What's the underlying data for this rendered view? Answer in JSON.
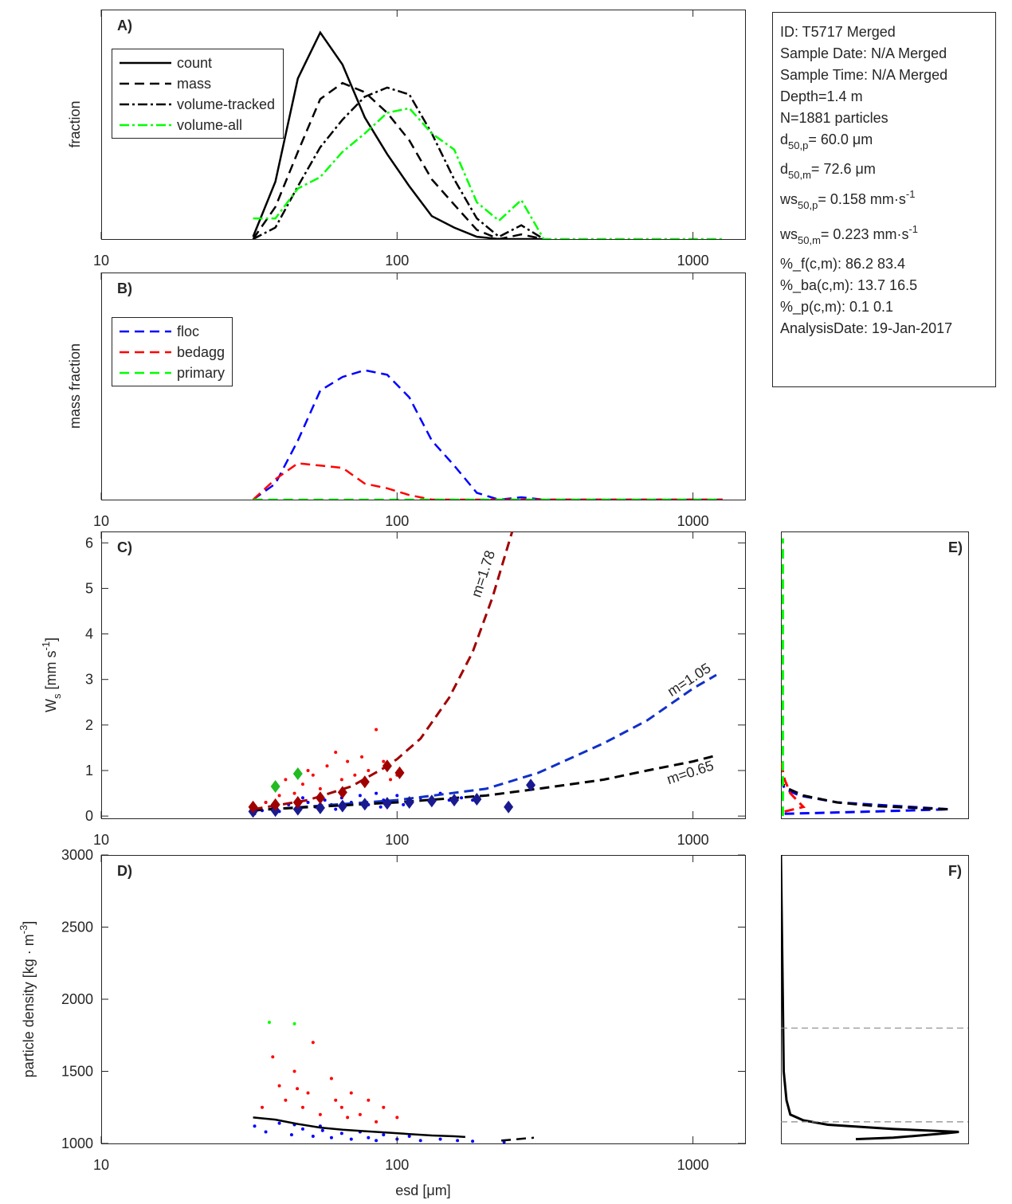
{
  "chart_data": [
    {
      "type": "line",
      "label": "A)",
      "ylabel": "fraction",
      "xscale": "log",
      "xlim": [
        10,
        1500
      ],
      "xticks": [
        10,
        100,
        1000
      ],
      "ylim": [
        0,
        1
      ],
      "legend": "upper-left",
      "x": [
        32.6,
        38.8,
        46.2,
        55,
        65.4,
        77.8,
        92.6,
        110,
        131,
        156,
        186,
        221,
        263,
        313,
        373,
        443,
        528,
        628,
        747,
        889,
        1058,
        1259
      ],
      "series": [
        {
          "name": "count",
          "color": "#000000",
          "dash": "solid",
          "values": [
            0.01,
            0.25,
            0.7,
            0.9,
            0.76,
            0.53,
            0.37,
            0.23,
            0.1,
            0.05,
            0.01,
            0,
            0,
            0,
            null,
            null,
            null,
            null,
            null,
            null,
            null,
            null
          ]
        },
        {
          "name": "mass",
          "color": "#000000",
          "dash": "dashed",
          "values": [
            0,
            0.14,
            0.38,
            0.61,
            0.68,
            0.64,
            0.55,
            0.43,
            0.26,
            0.15,
            0.04,
            0,
            0.02,
            0,
            null,
            null,
            null,
            null,
            null,
            null,
            null,
            null
          ]
        },
        {
          "name": "volume-tracked",
          "color": "#000000",
          "dash": "dashdot",
          "values": [
            0,
            0.05,
            0.23,
            0.4,
            0.52,
            0.62,
            0.66,
            0.63,
            0.46,
            0.26,
            0.09,
            0.01,
            0.06,
            0,
            null,
            null,
            null,
            null,
            null,
            null,
            null,
            null
          ]
        },
        {
          "name": "volume-all",
          "color": "#00ff00",
          "dash": "dashdot",
          "values": [
            0.09,
            0.09,
            0.22,
            0.27,
            0.38,
            0.46,
            0.55,
            0.57,
            0.46,
            0.39,
            0.16,
            0.08,
            0.17,
            0,
            0,
            0,
            0,
            0,
            0,
            0,
            0,
            0
          ]
        }
      ]
    },
    {
      "type": "line",
      "label": "B)",
      "ylabel": "mass fraction",
      "xscale": "log",
      "xlim": [
        10,
        1500
      ],
      "xticks": [
        10,
        100,
        1000
      ],
      "ylim": [
        0,
        1
      ],
      "legend": "upper-left",
      "x": [
        32.6,
        38.8,
        46.2,
        55,
        65.4,
        77.8,
        92.6,
        110,
        131,
        156,
        186,
        221,
        263,
        313,
        373,
        443,
        528,
        628,
        747,
        889,
        1058,
        1259
      ],
      "series": [
        {
          "name": "floc",
          "color": "#0000ff",
          "dash": "dashed",
          "values": [
            0,
            0.07,
            0.26,
            0.48,
            0.54,
            0.57,
            0.55,
            0.45,
            0.26,
            0.15,
            0.03,
            0,
            0.01,
            0,
            0,
            0,
            0,
            0,
            0,
            0,
            0,
            0
          ]
        },
        {
          "name": "bedagg",
          "color": "#ff0000",
          "dash": "dashed",
          "values": [
            0,
            0.09,
            0.16,
            0.15,
            0.14,
            0.07,
            0.05,
            0.02,
            0,
            0,
            0,
            0,
            0,
            0,
            0,
            0,
            0,
            0,
            0,
            0,
            0,
            0
          ]
        },
        {
          "name": "primary",
          "color": "#00ff00",
          "dash": "dashed",
          "values": [
            0,
            0,
            0,
            0,
            0,
            0,
            0,
            0,
            0,
            0,
            0,
            0,
            0,
            0,
            0,
            0,
            0,
            0,
            0,
            0,
            0,
            0
          ]
        }
      ]
    },
    {
      "type": "scatter",
      "label": "C)",
      "ylabel": [
        {
          "text": "W"
        },
        {
          "text": "s",
          "shift": "sub"
        },
        {
          "text": " [mm s"
        },
        {
          "text": "-1",
          "shift": "super"
        },
        {
          "text": "]"
        }
      ],
      "xscale": "log",
      "xlim": [
        10,
        1500
      ],
      "xticks": [
        10,
        100,
        1000
      ],
      "ylim": [
        -0.05,
        6.25
      ],
      "yticks": [
        0,
        1,
        2,
        3,
        4,
        5,
        6
      ],
      "annotations": [
        {
          "text": "m=1.78",
          "color": "#a00000"
        },
        {
          "text": "m=1.05",
          "color": "#1030c8"
        },
        {
          "text": "m=0.65",
          "color": "#000000"
        }
      ],
      "series": [
        {
          "color": "#0000ff",
          "marker": "dot",
          "x": [
            33,
            35,
            38,
            40,
            43,
            46,
            50,
            53,
            57,
            60,
            65,
            70,
            75,
            80,
            85,
            90,
            95,
            100,
            110,
            120,
            130,
            140,
            150,
            165,
            180,
            36,
            48,
            62,
            88,
            105
          ],
          "values": [
            0.05,
            0.12,
            0.2,
            0.1,
            0.25,
            0.15,
            0.3,
            0.2,
            0.35,
            0.25,
            0.4,
            0.3,
            0.45,
            0.25,
            0.5,
            0.35,
            0.3,
            0.45,
            0.35,
            0.4,
            0.3,
            0.5,
            0.35,
            0.4,
            0.35,
            0.3,
            0.4,
            0.15,
            0.2,
            0.25
          ]
        },
        {
          "color": "#ff0000",
          "marker": "dot",
          "x": [
            33,
            36,
            40,
            42,
            45,
            48,
            52,
            55,
            58,
            62,
            65,
            68,
            72,
            76,
            80,
            85,
            90,
            95,
            100,
            50
          ],
          "values": [
            0.2,
            0.3,
            0.45,
            0.8,
            0.5,
            0.7,
            0.9,
            0.6,
            1.1,
            1.4,
            0.8,
            1.2,
            0.9,
            1.3,
            1.0,
            1.9,
            1.2,
            0.8,
            0.9,
            1.0
          ]
        },
        {
          "color": "#1030c8",
          "dash": "dashed",
          "x": [
            32.6,
            100,
            200,
            300,
            500,
            700,
            1000,
            1200
          ],
          "values": [
            0.12,
            0.35,
            0.6,
            0.95,
            1.6,
            2.1,
            2.8,
            3.1
          ]
        },
        {
          "color": "#000000",
          "dash": "dashed",
          "x": [
            32.6,
            100,
            200,
            300,
            500,
            700,
            1000,
            1200
          ],
          "values": [
            0.13,
            0.3,
            0.45,
            0.6,
            0.8,
            1.0,
            1.2,
            1.33
          ]
        },
        {
          "color": "#a00000",
          "dash": "dashed",
          "x": [
            32.6,
            50,
            70,
            90,
            100,
            120,
            150,
            180,
            210,
            245
          ],
          "values": [
            0.15,
            0.35,
            0.65,
            1.05,
            1.25,
            1.7,
            2.6,
            3.6,
            4.8,
            6.25
          ]
        },
        {
          "color": "#1a1a90",
          "marker": "diamond",
          "x": [
            32.6,
            38.8,
            46.2,
            55,
            65.4,
            77.8,
            92.6,
            110,
            131,
            156,
            186,
            238,
            283
          ],
          "values": [
            0.1,
            0.12,
            0.15,
            0.18,
            0.22,
            0.26,
            0.28,
            0.3,
            0.33,
            0.35,
            0.37,
            0.2,
            0.68
          ]
        },
        {
          "color": "#a00000",
          "marker": "diamond",
          "x": [
            32.6,
            38.8,
            46.2,
            55,
            65.4,
            77.8,
            92.6,
            102
          ],
          "values": [
            0.2,
            0.25,
            0.3,
            0.4,
            0.52,
            0.75,
            1.1,
            0.95
          ]
        },
        {
          "color": "#22bb22",
          "marker": "diamond",
          "x": [
            38.8,
            46.2
          ],
          "values": [
            0.65,
            0.93
          ]
        }
      ]
    },
    {
      "type": "scatter",
      "label": "D)",
      "xlabel": "esd [μm]",
      "ylabel": [
        {
          "text": "particle density [kg · m"
        },
        {
          "text": "-3",
          "shift": "super"
        },
        {
          "text": "]"
        }
      ],
      "xscale": "log",
      "xlim": [
        10,
        1500
      ],
      "xticks": [
        10,
        100,
        1000
      ],
      "ylim": [
        1000,
        3000
      ],
      "yticks": [
        1000,
        1500,
        2000,
        2500,
        3000
      ],
      "series": [
        {
          "color": "#0000ff",
          "marker": "dot",
          "x": [
            33,
            36,
            40,
            44,
            48,
            52,
            56,
            60,
            65,
            70,
            75,
            80,
            90,
            100,
            110,
            120,
            140,
            160,
            180,
            45,
            55,
            85,
            230
          ],
          "values": [
            1120,
            1080,
            1140,
            1060,
            1100,
            1050,
            1090,
            1040,
            1070,
            1030,
            1080,
            1040,
            1060,
            1030,
            1050,
            1020,
            1030,
            1020,
            1015,
            1130,
            1120,
            1020,
            1010
          ]
        },
        {
          "color": "#ff0000",
          "marker": "dot",
          "x": [
            35,
            38,
            40,
            42,
            45,
            48,
            50,
            55,
            60,
            62,
            65,
            70,
            75,
            80,
            85,
            90,
            100,
            52,
            46,
            68
          ],
          "values": [
            1250,
            1600,
            1400,
            1300,
            1500,
            1250,
            1350,
            1200,
            1450,
            1300,
            1250,
            1350,
            1200,
            1300,
            1150,
            1250,
            1180,
            1700,
            1380,
            1180
          ]
        },
        {
          "color": "#00ff00",
          "marker": "dot",
          "x": [
            37,
            45
          ],
          "values": [
            1840,
            1830
          ]
        },
        {
          "color": "#000000",
          "dash": "solid",
          "x": [
            32.6,
            38.8,
            46.2,
            55,
            65.4,
            77.8,
            92.6,
            110,
            131,
            156,
            170
          ],
          "values": [
            1180,
            1165,
            1135,
            1110,
            1095,
            1085,
            1075,
            1065,
            1055,
            1050,
            1045
          ]
        },
        {
          "color": "#000000",
          "dash": "dashed",
          "x": [
            225,
            290
          ],
          "values": [
            1020,
            1040
          ]
        }
      ]
    },
    {
      "type": "line",
      "label": "E)",
      "xlim": [
        0,
        1
      ],
      "ylim": [
        -0.05,
        6.25
      ],
      "series": [
        {
          "color": "#0000ff",
          "dash": "dashed",
          "x": [
            0.02,
            0.5,
            0.9,
            0.3,
            0.1,
            0.02,
            0
          ],
          "values": [
            0.05,
            0.1,
            0.15,
            0.3,
            0.45,
            0.6,
            0.8
          ]
        },
        {
          "color": "#000000",
          "dash": "dashed",
          "x": [
            0.89,
            0.5,
            0.3,
            0.12,
            0.04,
            0.01,
            0
          ],
          "values": [
            0.15,
            0.22,
            0.3,
            0.45,
            0.6,
            0.7,
            0.8
          ]
        },
        {
          "color": "#ff0000",
          "dash": "dashed",
          "x": [
            0.02,
            0.12,
            0.05,
            0.02,
            0.01,
            0
          ],
          "values": [
            0.1,
            0.2,
            0.5,
            0.8,
            1.0,
            1.2
          ]
        },
        {
          "color": "#00ff00",
          "dash": "dashed",
          "x": [
            0.01,
            0.01
          ],
          "values": [
            0,
            6.1
          ]
        }
      ]
    },
    {
      "type": "line",
      "label": "F)",
      "xlim": [
        0,
        1
      ],
      "ylim": [
        1000,
        3000
      ],
      "hlines": [
        1800,
        1150
      ],
      "hline_color": "#888888",
      "series": [
        {
          "color": "#000000",
          "dash": "solid",
          "x": [
            0.4,
            0.6,
            0.88,
            0.95,
            0.6,
            0.25,
            0.12,
            0.05,
            0.03,
            0.015,
            0.01,
            0
          ],
          "values": [
            1030,
            1040,
            1070,
            1080,
            1100,
            1130,
            1160,
            1200,
            1300,
            1500,
            2000,
            3000
          ]
        }
      ]
    }
  ],
  "info_box": {
    "lines": [
      [
        {
          "text": "ID: T5717 Merged"
        }
      ],
      [
        {
          "text": "Sample Date: N/A Merged"
        }
      ],
      [
        {
          "text": "Sample Time: N/A Merged"
        }
      ],
      [
        {
          "text": "Depth=1.4 m"
        }
      ],
      [
        {
          "text": "N=1881 particles"
        }
      ],
      [
        {
          "text": "d"
        },
        {
          "text": "50,p",
          "shift": "sub"
        },
        {
          "text": "=  60.0 μm"
        }
      ],
      [
        {
          "text": "d"
        },
        {
          "text": "50,m",
          "shift": "sub"
        },
        {
          "text": "=  72.6 μm"
        }
      ],
      [
        {
          "text": "ws"
        },
        {
          "text": "50,p",
          "shift": "sub"
        },
        {
          "text": "= 0.158 mm·s"
        },
        {
          "text": "-1",
          "shift": "super"
        }
      ],
      [
        {
          "text": "ws"
        },
        {
          "text": "50,m",
          "shift": "sub"
        },
        {
          "text": "= 0.223 mm·s"
        },
        {
          "text": "-1",
          "shift": "super"
        }
      ],
      [
        {
          "text": "%_f(c,m): 86.2 83.4"
        }
      ],
      [
        {
          "text": "%_ba(c,m): 13.7 16.5"
        }
      ],
      [
        {
          "text": "%_p(c,m): 0.1 0.1"
        }
      ],
      [
        {
          "text": "AnalysisDate: 19-Jan-2017"
        }
      ]
    ]
  }
}
